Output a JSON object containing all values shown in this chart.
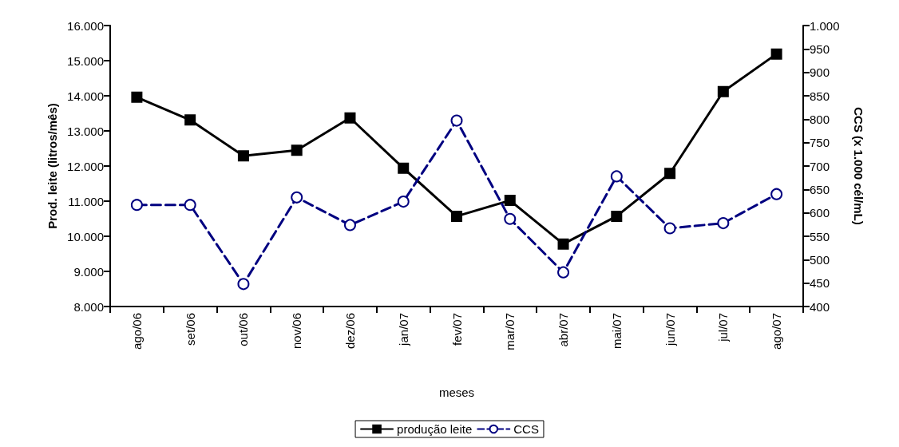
{
  "chart_data": {
    "type": "line",
    "xlabel": "meses",
    "ylabel": "Prod. leite (litros/mês)",
    "y2label": "CCS (x 1.000 cél/mL)",
    "categories": [
      "ago/06",
      "set/06",
      "out/06",
      "nov/06",
      "dez/06",
      "jan/07",
      "fev/07",
      "mar/07",
      "abr/07",
      "mai/07",
      "jun/07",
      "jul/07",
      "ago/07"
    ],
    "series": [
      {
        "name": "produção leite",
        "color": "#000000",
        "marker": "square",
        "line_style": "solid",
        "values": [
          13960,
          13310,
          12290,
          12450,
          13370,
          11940,
          10570,
          11020,
          9780,
          10570,
          11790,
          14120,
          15190
        ]
      },
      {
        "name": "CCS",
        "color": "#000080",
        "marker": "circle",
        "line_style": "dashed",
        "axis": "y2",
        "values": [
          617,
          617,
          448,
          633,
          574,
          624,
          797,
          587,
          473,
          678,
          567,
          578,
          640
        ]
      }
    ],
    "ylim": [
      8000,
      16000
    ],
    "yticks": [
      {
        "value": 8000,
        "label": "8.000"
      },
      {
        "value": 9000,
        "label": "9.000"
      },
      {
        "value": 10000,
        "label": "10.000"
      },
      {
        "value": 11000,
        "label": "11.000"
      },
      {
        "value": 12000,
        "label": "12.000"
      },
      {
        "value": 13000,
        "label": "13.000"
      },
      {
        "value": 14000,
        "label": "14.000"
      },
      {
        "value": 15000,
        "label": "15.000"
      },
      {
        "value": 16000,
        "label": "16.000"
      }
    ],
    "y2lim": [
      400,
      1000
    ],
    "y2ticks": [
      400,
      450,
      500,
      550,
      600,
      650,
      700,
      750,
      800,
      850,
      900,
      950,
      {
        "value": 1000,
        "label": "1.000"
      }
    ],
    "grid": false,
    "legend": "bottom"
  }
}
